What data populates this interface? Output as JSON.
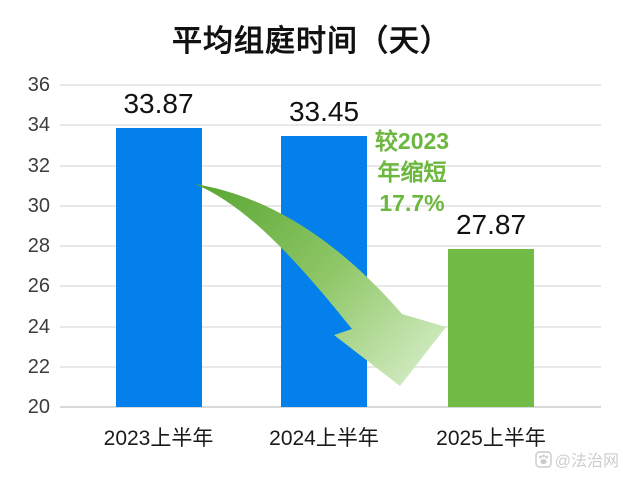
{
  "chart_data": {
    "type": "bar",
    "title": "平均组庭时间（天）",
    "categories": [
      "2023上半年",
      "2024上半年",
      "2025上半年"
    ],
    "values": [
      33.87,
      33.45,
      27.87
    ],
    "value_labels": [
      "33.87",
      "33.45",
      "27.87"
    ],
    "bar_colors": [
      "#0380EB",
      "#0380EB",
      "#72BB44"
    ],
    "ylim": [
      20,
      36
    ],
    "ytick_step": 2,
    "ytick_labels": [
      "20",
      "22",
      "24",
      "26",
      "28",
      "30",
      "32",
      "34",
      "36"
    ],
    "grid": true,
    "legend": null,
    "annotation": {
      "lines": [
        "较2023",
        "年缩短",
        "17.7%"
      ],
      "color": "#6CB83F"
    },
    "arrow_colors": {
      "tail": "#57A531",
      "mid": "#8FC767",
      "head": "#CFEABE"
    },
    "watermark": "@法治网"
  }
}
